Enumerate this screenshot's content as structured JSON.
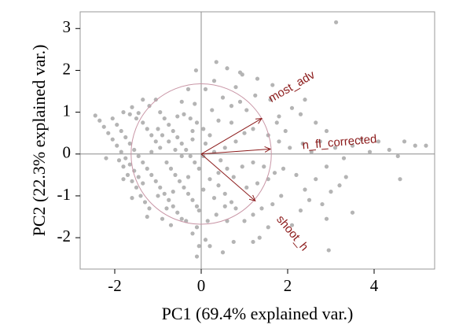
{
  "chart_data": {
    "type": "scatter",
    "title": "",
    "xlabel": "PC1 (69.4% explained var.)",
    "ylabel": "PC2 (22.3% explained var.)",
    "xlim": [
      -2.8,
      5.4
    ],
    "ylim": [
      -2.75,
      3.4
    ],
    "x_ticks": [
      -2,
      0,
      2,
      4
    ],
    "y_ticks": [
      -2,
      -1,
      0,
      1,
      2,
      3
    ],
    "x_tick_labels": [
      "-2",
      "0",
      "2",
      "4"
    ],
    "y_tick_labels": [
      "-2",
      "-1",
      "0",
      "1",
      "2",
      "3"
    ],
    "grid": false,
    "reference_lines": {
      "x": 0,
      "y": 0
    },
    "correlation_circle": {
      "center": [
        0,
        0
      ],
      "radius": 1.65
    },
    "colors": {
      "points": "#b4b4b4",
      "arrows": "#8b1a1a",
      "circle": "#c996a6",
      "reference_lines": "#8c8c8c",
      "panel_border": "#999999"
    },
    "loadings": [
      {
        "label": "most_adv",
        "end": [
          1.4,
          0.85
        ],
        "label_pos": [
          2.1,
          1.6
        ],
        "label_angle": -30
      },
      {
        "label": "n_fl_corrected",
        "end": [
          1.6,
          0.12
        ],
        "label_pos": [
          3.2,
          0.27
        ],
        "label_angle": -5
      },
      {
        "label": "shoot_h",
        "end": [
          1.25,
          -1.12
        ],
        "label_pos": [
          2.1,
          -1.9
        ],
        "label_angle": 50
      }
    ],
    "points": [
      [
        3.12,
        3.15
      ],
      [
        0.35,
        2.2
      ],
      [
        0.6,
        2.05
      ],
      [
        -0.12,
        2.0
      ],
      [
        0.95,
        1.9
      ],
      [
        1.3,
        1.8
      ],
      [
        0.1,
        1.55
      ],
      [
        0.5,
        1.35
      ],
      [
        1.6,
        1.3
      ],
      [
        1.25,
        1.4
      ],
      [
        0.8,
        1.6
      ],
      [
        0.3,
        1.75
      ],
      [
        -0.3,
        1.55
      ],
      [
        0.7,
        1.15
      ],
      [
        1.05,
        1.05
      ],
      [
        -1.35,
        1.3
      ],
      [
        -1.2,
        1.15
      ],
      [
        -1.05,
        1.3
      ],
      [
        -1.6,
        1.12
      ],
      [
        -1.8,
        1.0
      ],
      [
        -1.65,
        0.95
      ],
      [
        -1.45,
        0.98
      ],
      [
        -1.5,
        0.85
      ],
      [
        -1.35,
        0.75
      ],
      [
        -1.25,
        0.6
      ],
      [
        -1.15,
        0.45
      ],
      [
        -1.05,
        0.3
      ],
      [
        -0.95,
        0.15
      ],
      [
        -2.05,
        0.85
      ],
      [
        -1.95,
        0.7
      ],
      [
        -1.85,
        0.55
      ],
      [
        -1.75,
        0.4
      ],
      [
        -1.65,
        0.25
      ],
      [
        -1.55,
        0.1
      ],
      [
        -1.45,
        -0.05
      ],
      [
        -1.35,
        -0.2
      ],
      [
        -1.25,
        -0.35
      ],
      [
        -1.15,
        -0.5
      ],
      [
        -1.05,
        -0.65
      ],
      [
        -0.95,
        -0.8
      ],
      [
        -0.85,
        -0.95
      ],
      [
        -0.75,
        -1.1
      ],
      [
        -0.65,
        -1.25
      ],
      [
        -0.55,
        -1.4
      ],
      [
        -0.45,
        -1.55
      ],
      [
        -2.45,
        0.92
      ],
      [
        -2.35,
        0.8
      ],
      [
        -2.25,
        0.65
      ],
      [
        -2.15,
        0.5
      ],
      [
        -2.05,
        0.35
      ],
      [
        -1.95,
        0.2
      ],
      [
        -1.85,
        0.05
      ],
      [
        -1.75,
        -0.1
      ],
      [
        -1.65,
        -0.25
      ],
      [
        -1.55,
        -0.4
      ],
      [
        -1.45,
        -0.55
      ],
      [
        -1.35,
        -0.7
      ],
      [
        -1.9,
        -0.15
      ],
      [
        -1.8,
        -0.3
      ],
      [
        -1.7,
        -0.5
      ],
      [
        -1.6,
        -0.65
      ],
      [
        -1.5,
        -0.8
      ],
      [
        -1.4,
        -1.0
      ],
      [
        -1.3,
        -1.15
      ],
      [
        -1.2,
        -1.3
      ],
      [
        -0.95,
        1.0
      ],
      [
        -0.85,
        0.85
      ],
      [
        -0.75,
        0.7
      ],
      [
        -0.65,
        0.55
      ],
      [
        -0.55,
        0.4
      ],
      [
        -0.45,
        0.25
      ],
      [
        -0.35,
        0.1
      ],
      [
        -0.25,
        -0.05
      ],
      [
        -0.15,
        -0.2
      ],
      [
        -0.05,
        -0.35
      ],
      [
        -0.8,
        -0.2
      ],
      [
        -0.7,
        -0.35
      ],
      [
        -0.6,
        -0.5
      ],
      [
        -0.5,
        -0.65
      ],
      [
        -0.4,
        -0.8
      ],
      [
        -0.3,
        -0.95
      ],
      [
        -0.2,
        -1.1
      ],
      [
        -0.1,
        -1.25
      ],
      [
        -0.55,
        0.9
      ],
      [
        -0.4,
        0.95
      ],
      [
        -0.25,
        0.85
      ],
      [
        -0.1,
        0.75
      ],
      [
        0.05,
        0.6
      ],
      [
        0.2,
        0.45
      ],
      [
        -0.6,
        0.1
      ],
      [
        -0.45,
        -0.05
      ],
      [
        -1.0,
        0.6
      ],
      [
        -0.9,
        0.45
      ],
      [
        -0.75,
        0.3
      ],
      [
        -0.2,
        0.35
      ],
      [
        0.1,
        0.25
      ],
      [
        0.3,
        0.05
      ],
      [
        0.45,
        -0.15
      ],
      [
        0.6,
        -0.35
      ],
      [
        0.75,
        -0.55
      ],
      [
        0.2,
        -0.6
      ],
      [
        0.4,
        -0.75
      ],
      [
        0.55,
        -0.95
      ],
      [
        0.7,
        -1.15
      ],
      [
        0.05,
        -0.85
      ],
      [
        -0.05,
        -1.35
      ],
      [
        0.15,
        -1.6
      ],
      [
        0.35,
        -1.45
      ],
      [
        0.6,
        -1.6
      ],
      [
        -0.35,
        -1.6
      ],
      [
        -0.1,
        -1.75
      ],
      [
        0.55,
        -1.25
      ],
      [
        0.8,
        -1.3
      ],
      [
        -0.2,
        -1.9
      ],
      [
        0.1,
        -2.05
      ],
      [
        -0.05,
        -2.2
      ],
      [
        0.2,
        -2.2
      ],
      [
        -0.1,
        -2.45
      ],
      [
        0.5,
        -2.35
      ],
      [
        0.75,
        -2.1
      ],
      [
        1.2,
        -2.1
      ],
      [
        1.35,
        -2.0
      ],
      [
        1.55,
        -1.75
      ],
      [
        1.0,
        -1.6
      ],
      [
        1.2,
        -1.45
      ],
      [
        1.4,
        -1.3
      ],
      [
        1.65,
        -1.2
      ],
      [
        1.85,
        -1.0
      ],
      [
        1.05,
        -0.8
      ],
      [
        1.3,
        -0.7
      ],
      [
        1.55,
        -0.6
      ],
      [
        0.95,
        -0.3
      ],
      [
        1.2,
        -0.2
      ],
      [
        1.45,
        -0.3
      ],
      [
        1.7,
        -0.45
      ],
      [
        1.9,
        -0.35
      ],
      [
        0.8,
        0.3
      ],
      [
        1.0,
        0.5
      ],
      [
        1.2,
        0.6
      ],
      [
        1.55,
        0.45
      ],
      [
        1.8,
        0.3
      ],
      [
        1.95,
        0.55
      ],
      [
        1.75,
        0.75
      ],
      [
        2.05,
        0.15
      ],
      [
        2.35,
        0.25
      ],
      [
        2.55,
        0.05
      ],
      [
        2.75,
        0.3
      ],
      [
        2.2,
        -0.5
      ],
      [
        2.4,
        -0.85
      ],
      [
        2.65,
        -0.6
      ],
      [
        2.9,
        -0.3
      ],
      [
        3.1,
        0.15
      ],
      [
        3.3,
        -0.1
      ],
      [
        3.5,
        0.2
      ],
      [
        3.7,
        0.35
      ],
      [
        3.9,
        0.05
      ],
      [
        4.1,
        0.3
      ],
      [
        4.35,
        0.1
      ],
      [
        4.55,
        -0.05
      ],
      [
        4.7,
        0.3
      ],
      [
        4.95,
        0.2
      ],
      [
        5.2,
        0.2
      ],
      [
        2.1,
        -1.7
      ],
      [
        2.8,
        -1.2
      ],
      [
        3.0,
        -0.9
      ],
      [
        3.2,
        -0.75
      ],
      [
        2.5,
        -1.1
      ],
      [
        2.3,
        -1.35
      ],
      [
        2.95,
        -2.3
      ],
      [
        2.9,
        -1.55
      ],
      [
        3.35,
        -0.55
      ],
      [
        3.5,
        -1.4
      ],
      [
        4.6,
        -0.6
      ],
      [
        2.3,
        0.95
      ],
      [
        2.4,
        1.3
      ],
      [
        1.8,
        0.9
      ],
      [
        2.1,
        1.1
      ],
      [
        2.65,
        0.75
      ],
      [
        2.9,
        0.55
      ],
      [
        1.65,
        1.65
      ],
      [
        0.9,
        1.95
      ],
      [
        -0.45,
        1.25
      ],
      [
        -0.15,
        1.2
      ],
      [
        0.4,
        0.8
      ],
      [
        0.25,
        1.05
      ],
      [
        -1.6,
        -1.05
      ],
      [
        -1.25,
        -1.5
      ],
      [
        -0.9,
        -1.55
      ],
      [
        -0.7,
        -1.7
      ],
      [
        -0.65,
        -0.9
      ],
      [
        -1.15,
        0.05
      ],
      [
        -1.8,
        -0.6
      ],
      [
        -2.2,
        -0.1
      ],
      [
        -0.3,
        -0.55
      ],
      [
        -0.2,
        0.55
      ],
      [
        0.4,
        -0.45
      ],
      [
        0.05,
        -0.05
      ],
      [
        -1.0,
        -1.0
      ],
      [
        -0.8,
        -1.3
      ],
      [
        0.3,
        -1.05
      ],
      [
        0.55,
        0.15
      ],
      [
        0.7,
        0.75
      ],
      [
        0.9,
        1.25
      ]
    ]
  }
}
